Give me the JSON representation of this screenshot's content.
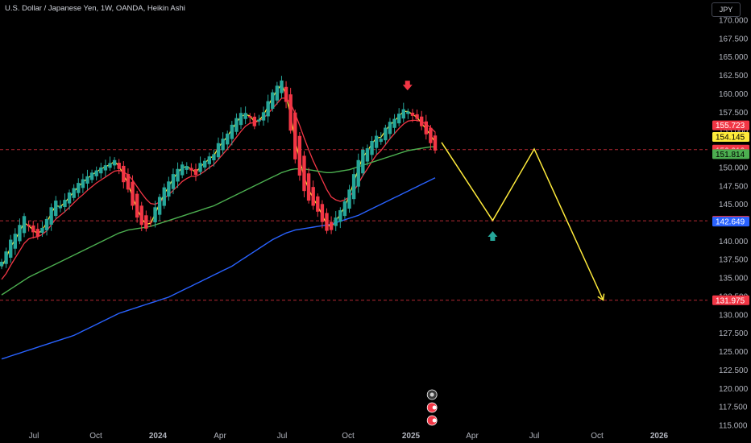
{
  "header": {
    "title": "U.S. Dollar / Japanese Yen, 1W, OANDA, Heikin Ashi",
    "currency_button": "JPY"
  },
  "colors": {
    "up": "#26a69a",
    "down": "#f23645",
    "ema_fast": "#ffeb3b",
    "ema_mid": "#f23645",
    "sma_long": "#4caf50",
    "sma_longest": "#2962ff",
    "projection": "#ffeb3b",
    "level_line": "#b22833"
  },
  "chart_data": {
    "type": "candlestick",
    "ylim": [
      115,
      171
    ],
    "y_ticks": [
      "115.000",
      "117.500",
      "120.000",
      "122.500",
      "125.000",
      "127.500",
      "130.000",
      "132.500",
      "135.000",
      "137.500",
      "140.000",
      "142.500",
      "145.000",
      "147.500",
      "150.000",
      "152.500",
      "155.000",
      "157.500",
      "160.000",
      "162.500",
      "165.000",
      "167.500",
      "170.000"
    ],
    "x_ticks": [
      "Jul",
      "Oct",
      "2024",
      "Apr",
      "Jul",
      "Oct",
      "2025",
      "Apr",
      "Jul",
      "Oct",
      "2026"
    ],
    "x_tick_dates": [
      "2023-07",
      "2023-10",
      "2024-01",
      "2024-04",
      "2024-07",
      "2024-10",
      "2025-01",
      "2025-04",
      "2025-07",
      "2025-10",
      "2026-01"
    ],
    "candle_closes": [
      137.2,
      138.6,
      140.2,
      141.0,
      142.2,
      143.4,
      142.0,
      141.2,
      140.6,
      141.8,
      143.0,
      144.6,
      145.5,
      144.8,
      145.6,
      146.6,
      147.2,
      147.9,
      148.4,
      148.8,
      149.3,
      149.6,
      150.0,
      150.3,
      150.6,
      151.0,
      149.8,
      148.0,
      147.0,
      144.8,
      143.2,
      142.2,
      141.7,
      142.5,
      144.6,
      146.0,
      147.3,
      148.1,
      149.1,
      149.8,
      150.4,
      150.2,
      149.6,
      149.0,
      150.6,
      150.9,
      151.5,
      151.8,
      153.3,
      153.9,
      154.6,
      155.8,
      156.7,
      157.4,
      157.4,
      156.8,
      155.6,
      156.5,
      157.5,
      159.0,
      160.2,
      161.1,
      161.8,
      158.9,
      155.0,
      151.1,
      148.9,
      146.8,
      145.5,
      144.8,
      144.0,
      142.6,
      141.4,
      141.5,
      143.2,
      144.2,
      145.4,
      147.0,
      149.1,
      151.0,
      152.4,
      152.6,
      153.6,
      154.3,
      153.9,
      155.4,
      156.2,
      156.6,
      157.3,
      157.9,
      157.6,
      157.0,
      156.6,
      155.6,
      154.5,
      153.3,
      152.3
    ],
    "series": [
      {
        "name": "",
        "color": "#ffeb3b",
        "values": [
          136.5,
          137.7,
          139.2,
          140.2,
          141.3,
          142.5,
          142.1,
          141.5,
          141.0,
          141.5,
          142.5,
          143.8,
          144.8,
          144.7,
          145.2,
          146.0,
          146.7,
          147.4,
          148.0,
          148.5,
          149.0,
          149.4,
          149.8,
          150.1,
          150.4,
          150.8,
          150.2,
          149.0,
          147.8,
          146.0,
          144.4,
          143.1,
          142.3,
          142.4,
          143.7,
          145.1,
          146.4,
          147.4,
          148.5,
          149.3,
          150.0,
          150.1,
          149.8,
          149.3,
          150.1,
          150.6,
          151.2,
          151.6,
          152.7,
          153.5,
          154.2,
          155.2,
          156.1,
          156.9,
          157.2,
          157.0,
          156.2,
          156.4,
          157.1,
          158.3,
          159.5,
          160.5,
          161.3,
          159.8,
          157.0,
          153.7,
          151.0,
          148.7,
          147.0,
          145.8,
          144.8,
          143.5,
          142.3,
          141.9,
          142.8,
          143.6,
          144.7,
          146.2,
          148.0,
          149.8,
          151.4,
          152.2,
          153.2,
          154.0,
          154.1,
          155.0,
          155.8,
          156.3,
          157.0,
          157.6,
          157.6,
          157.2,
          156.8,
          156.0,
          155.2,
          154.4,
          153.4
        ]
      },
      {
        "name": "",
        "color": "#f23645",
        "values": [
          134.8,
          135.6,
          136.7,
          137.7,
          138.7,
          139.7,
          140.3,
          140.5,
          140.6,
          140.9,
          141.4,
          142.2,
          143.0,
          143.5,
          144.0,
          144.6,
          145.2,
          145.8,
          146.3,
          146.9,
          147.4,
          147.9,
          148.3,
          148.7,
          149.1,
          149.5,
          149.6,
          149.4,
          149.0,
          148.3,
          147.4,
          146.5,
          145.7,
          145.1,
          145.0,
          145.3,
          145.8,
          146.3,
          146.9,
          147.5,
          148.1,
          148.5,
          148.8,
          148.8,
          149.1,
          149.5,
          150.0,
          150.4,
          151.1,
          151.8,
          152.5,
          153.3,
          154.1,
          154.9,
          155.6,
          156.0,
          156.1,
          156.3,
          156.7,
          157.3,
          158.0,
          158.7,
          159.4,
          159.4,
          158.7,
          157.3,
          155.7,
          154.0,
          152.4,
          150.9,
          149.6,
          148.3,
          147.0,
          146.0,
          145.6,
          145.4,
          145.6,
          146.0,
          146.8,
          147.8,
          148.9,
          149.8,
          150.8,
          151.7,
          152.3,
          153.1,
          153.9,
          154.6,
          155.3,
          155.9,
          156.3,
          156.4,
          156.4,
          156.2,
          155.9,
          155.4,
          154.8
        ]
      },
      {
        "name": "",
        "color": "#4caf50",
        "values": [
          132.7,
          133.1,
          133.5,
          133.9,
          134.3,
          134.7,
          135.1,
          135.4,
          135.7,
          136.0,
          136.3,
          136.6,
          136.9,
          137.2,
          137.5,
          137.8,
          138.1,
          138.4,
          138.7,
          139.0,
          139.3,
          139.6,
          139.9,
          140.2,
          140.5,
          140.8,
          141.1,
          141.3,
          141.5,
          141.6,
          141.7,
          141.8,
          141.9,
          142.0,
          142.2,
          142.4,
          142.6,
          142.8,
          143.0,
          143.2,
          143.4,
          143.6,
          143.8,
          144.0,
          144.2,
          144.4,
          144.6,
          144.8,
          145.1,
          145.4,
          145.7,
          146.0,
          146.3,
          146.6,
          146.9,
          147.2,
          147.5,
          147.8,
          148.1,
          148.4,
          148.7,
          149.0,
          149.3,
          149.5,
          149.7,
          149.8,
          149.8,
          149.8,
          149.7,
          149.6,
          149.5,
          149.4,
          149.3,
          149.3,
          149.4,
          149.5,
          149.6,
          149.7,
          149.9,
          150.1,
          150.3,
          150.5,
          150.7,
          150.9,
          151.1,
          151.3,
          151.5,
          151.7,
          151.9,
          152.1,
          152.3,
          152.4,
          152.5,
          152.6,
          152.7,
          152.8,
          152.8
        ]
      },
      {
        "name": "",
        "color": "#2962ff",
        "values": [
          124.0,
          124.2,
          124.4,
          124.6,
          124.8,
          125.0,
          125.2,
          125.4,
          125.6,
          125.8,
          126.0,
          126.2,
          126.4,
          126.6,
          126.8,
          127.0,
          127.2,
          127.5,
          127.8,
          128.1,
          128.4,
          128.7,
          129.0,
          129.3,
          129.6,
          129.9,
          130.2,
          130.4,
          130.6,
          130.8,
          131.0,
          131.2,
          131.4,
          131.6,
          131.8,
          132.0,
          132.2,
          132.4,
          132.7,
          133.0,
          133.3,
          133.6,
          133.9,
          134.2,
          134.5,
          134.8,
          135.1,
          135.4,
          135.7,
          136.0,
          136.3,
          136.6,
          137.0,
          137.4,
          137.8,
          138.2,
          138.6,
          139.0,
          139.4,
          139.8,
          140.2,
          140.5,
          140.8,
          141.1,
          141.3,
          141.5,
          141.6,
          141.7,
          141.8,
          141.9,
          142.0,
          142.1,
          142.2,
          142.3,
          142.5,
          142.7,
          142.9,
          143.1,
          143.3,
          143.5,
          143.8,
          144.1,
          144.4,
          144.7,
          145.0,
          145.3,
          145.6,
          145.9,
          146.2,
          146.5,
          146.8,
          147.1,
          147.4,
          147.7,
          148.0,
          148.3,
          148.6
        ]
      }
    ],
    "price_labels": [
      {
        "value": "155.723",
        "bg": "#f23645",
        "fg": "#ffffff",
        "y": 155.723
      },
      {
        "value": "154.145",
        "bg": "#ffeb3b",
        "fg": "#000000",
        "y": 154.145
      },
      {
        "value": "152.428",
        "bg": "#f23645",
        "fg": "#ffffff",
        "y": 152.428
      },
      {
        "value": "152.312",
        "bg": "#f23645",
        "fg": "#ffffff",
        "y": 152.312
      },
      {
        "value": "151.889",
        "bg": "#f23645",
        "fg": "#ffffff",
        "y": 151.889
      },
      {
        "value": "151.814",
        "bg": "#4caf50",
        "fg": "#000000",
        "y": 151.814
      },
      {
        "value": "142.762",
        "bg": "#f23645",
        "fg": "#ffffff",
        "y": 142.762
      },
      {
        "value": "142.649",
        "bg": "#2962ff",
        "fg": "#ffffff",
        "y": 142.649
      },
      {
        "value": "131.975",
        "bg": "#f23645",
        "fg": "#ffffff",
        "y": 131.975
      }
    ],
    "horizontal_levels": [
      152.428,
      142.762,
      131.975
    ],
    "projection_path": [
      {
        "date": "2025-02-15",
        "y": 153.4
      },
      {
        "date": "2025-05-01",
        "y": 142.8
      },
      {
        "date": "2025-07-01",
        "y": 152.5
      },
      {
        "date": "2025-10-10",
        "y": 132.0
      }
    ],
    "markers": [
      {
        "type": "down-arrow",
        "color": "#f23645",
        "date": "2024-12-27",
        "y": 161.0
      },
      {
        "type": "up-arrow",
        "color": "#26a69a",
        "date": "2025-05-01",
        "y": 140.8
      }
    ]
  }
}
